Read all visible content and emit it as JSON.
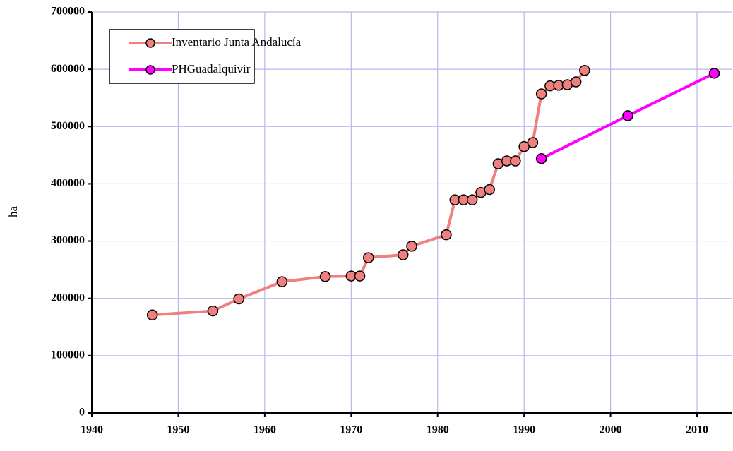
{
  "chart_data": {
    "type": "line",
    "ylabel": "ha",
    "xlim": [
      1940,
      2014
    ],
    "xticks": [
      1940,
      1950,
      1960,
      1970,
      1980,
      1990,
      2000,
      2010
    ],
    "ylim": [
      0,
      700000
    ],
    "yticks": [
      0,
      100000,
      200000,
      300000,
      400000,
      500000,
      600000,
      700000
    ],
    "grid": true,
    "legend": "upper left",
    "series": [
      {
        "name": "Inventario Junta Andalucía",
        "color": "#f08080",
        "x": [
          1947,
          1954,
          1957,
          1962,
          1967,
          1970,
          1971,
          1972,
          1976,
          1977,
          1981,
          1982,
          1983,
          1984,
          1985,
          1986,
          1987,
          1988,
          1989,
          1990,
          1991,
          1992,
          1993,
          1994,
          1995,
          1996,
          1997
        ],
        "values": [
          171000,
          178000,
          199000,
          229000,
          238000,
          239000,
          239000,
          271000,
          276000,
          291000,
          311000,
          372000,
          372000,
          372000,
          385000,
          390000,
          435000,
          440000,
          440000,
          465000,
          472000,
          557000,
          571000,
          572000,
          573000,
          578000,
          598000
        ]
      },
      {
        "name": "PHGuadalquivir",
        "color": "#ff00ff",
        "x": [
          1992,
          2002,
          2012
        ],
        "values": [
          444000,
          519000,
          593000
        ]
      }
    ]
  }
}
